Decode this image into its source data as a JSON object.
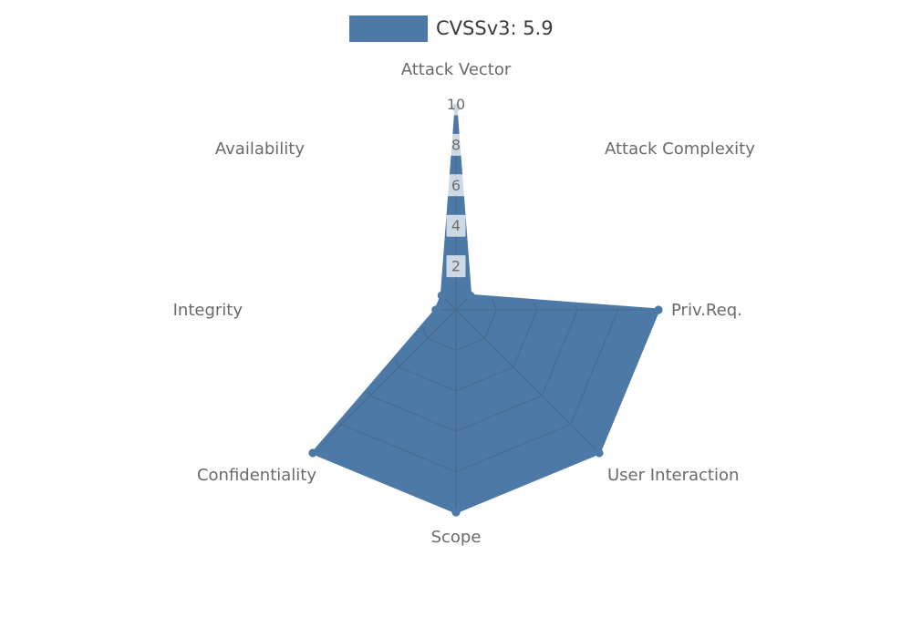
{
  "legend": {
    "label": "CVSSv3: 5.9",
    "swatch_color": "#4d79a7"
  },
  "chart_data": {
    "type": "radar",
    "title": "CVSSv3: 5.9",
    "categories": [
      "Attack Vector",
      "Attack Complexity",
      "Priv.Req.",
      "User Interaction",
      "Scope",
      "Confidentiality",
      "Integrity",
      "Availability"
    ],
    "series": [
      {
        "name": "CVSSv3: 5.9",
        "values": [
          10,
          1,
          10,
          10,
          10,
          10,
          1,
          1
        ]
      }
    ],
    "rlim": [
      0,
      10
    ],
    "rticks": [
      2,
      4,
      6,
      8,
      10
    ],
    "start_axis": "top",
    "direction": "clockwise",
    "grid": true,
    "grid_shape": "polygon",
    "legend_position": "top-center",
    "colors": {
      "fill": "#4d79a7",
      "outline": "#4d79a7",
      "grid_line": "#4a6d92",
      "axis_label": "#6a6a6a",
      "tick_label": "#6e6e6e",
      "tick_box": "rgba(255,255,255,0.72)",
      "legend_text": "#3a3a3a"
    }
  }
}
